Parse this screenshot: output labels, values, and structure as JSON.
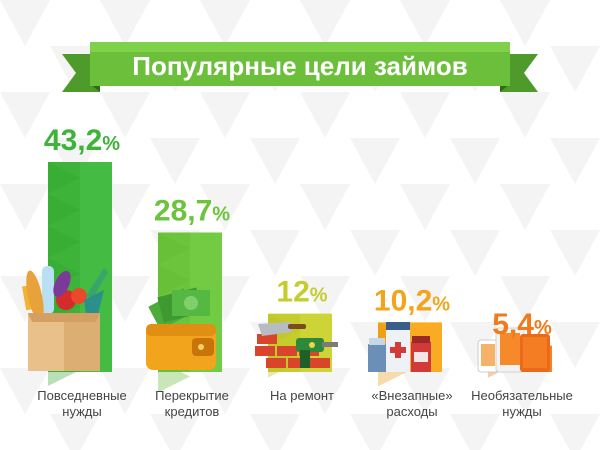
{
  "title": "Популярные цели займов",
  "chart_data": {
    "type": "bar",
    "title": "Популярные цели займов",
    "categories": [
      [
        "Повседневные",
        "нужды"
      ],
      [
        "Перекрытие",
        "кредитов"
      ],
      [
        "На ремонт"
      ],
      [
        "«Внезапные»",
        "расходы"
      ],
      [
        "Необязательные",
        "нужды"
      ]
    ],
    "values": [
      43.2,
      28.7,
      12,
      10.2,
      5.4
    ],
    "value_labels": [
      "43,2",
      "28,7",
      "12",
      "10,2",
      "5,4"
    ],
    "unit": "%",
    "colors": [
      "#3db33a",
      "#6cc43c",
      "#c5cc2e",
      "#f2a51c",
      "#f27a1a"
    ],
    "icons": [
      "grocery-bag-icon",
      "wallet-money-icon",
      "bricks-trowel-drill-icon",
      "medicine-bottles-icon",
      "mobile-devices-icon"
    ],
    "ylim": [
      0,
      43.2
    ],
    "grid": false,
    "legend": "none"
  }
}
